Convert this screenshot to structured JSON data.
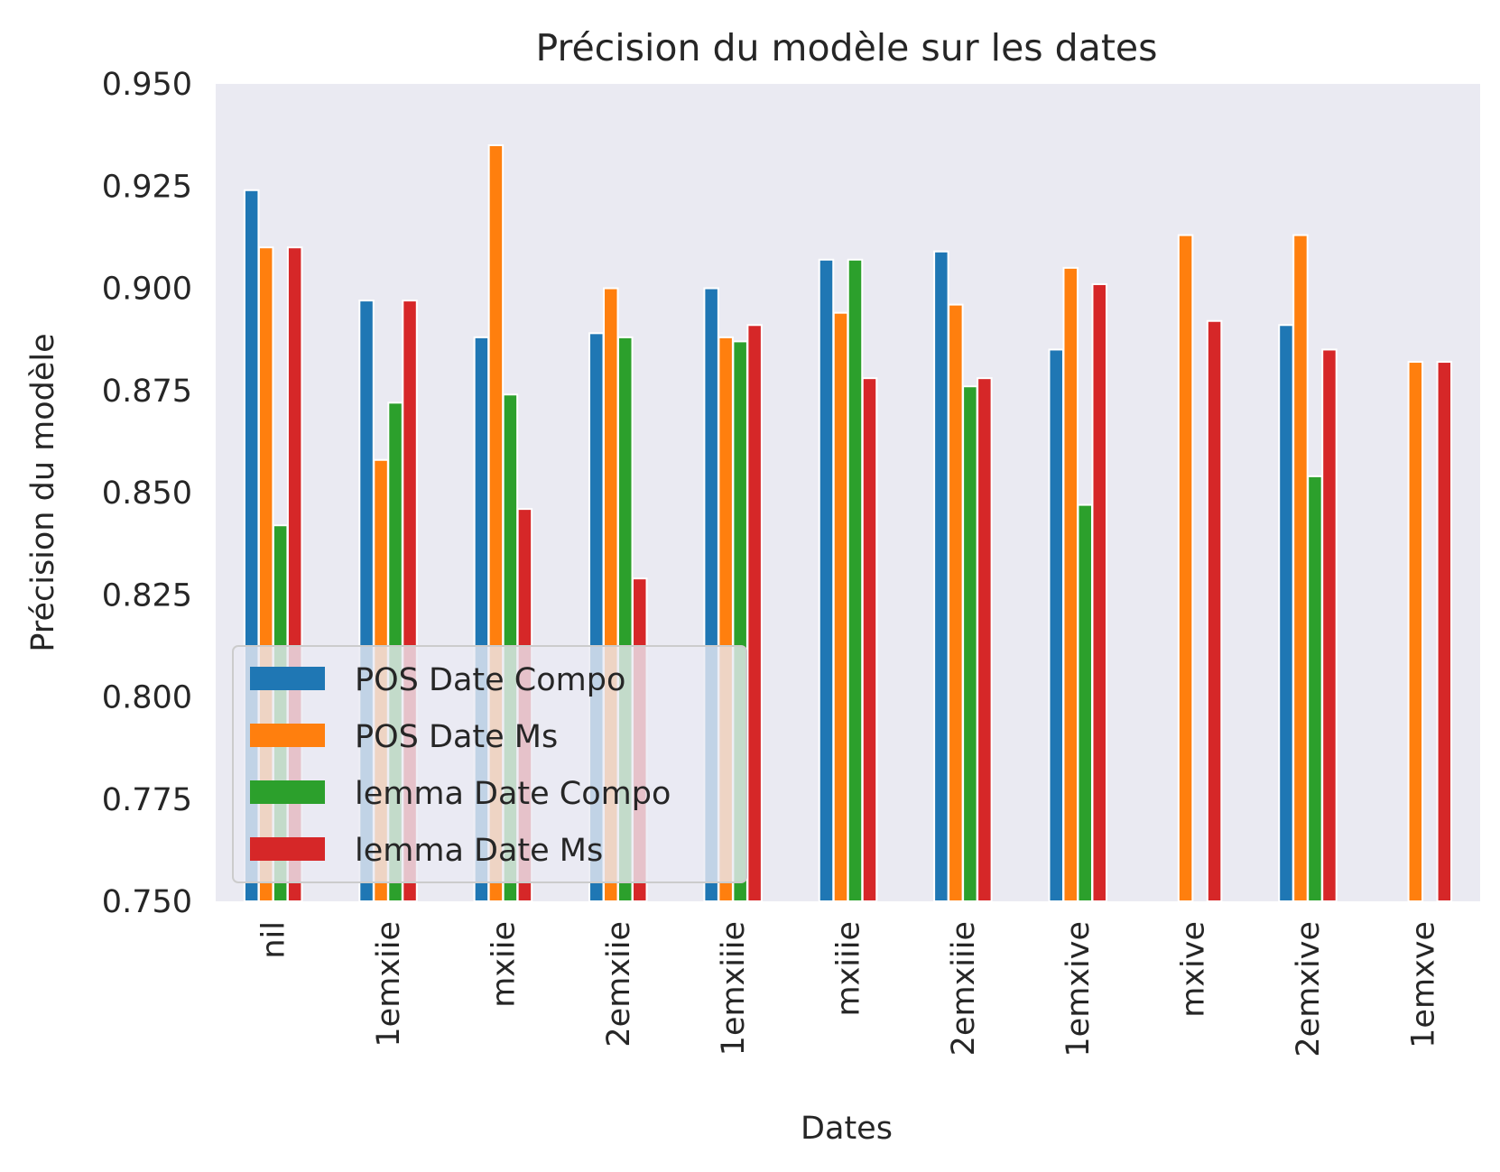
{
  "chart_data": {
    "type": "bar",
    "title": "Précision du modèle sur les dates",
    "xlabel": "Dates",
    "ylabel": "Précision du modèle",
    "ylim": [
      0.75,
      0.95
    ],
    "yticks": [
      "0.750",
      "0.775",
      "0.800",
      "0.825",
      "0.850",
      "0.875",
      "0.900",
      "0.925",
      "0.950"
    ],
    "grid": false,
    "legend_position": "lower-left",
    "categories": [
      "nil",
      "1emxiie",
      "mxiie",
      "2emxiie",
      "1emxiiie",
      "mxiiie",
      "2emxiiie",
      "1emxive",
      "mxive",
      "2emxive",
      "1emxve"
    ],
    "series": [
      {
        "name": "POS Date Compo",
        "color": "#1f77b4",
        "values": [
          0.924,
          0.897,
          0.888,
          0.889,
          0.9,
          0.907,
          0.909,
          0.885,
          null,
          0.891,
          null
        ]
      },
      {
        "name": "POS Date Ms",
        "color": "#ff7f0e",
        "values": [
          0.91,
          0.858,
          0.935,
          0.9,
          0.888,
          0.894,
          0.896,
          0.905,
          0.913,
          0.913,
          0.882
        ]
      },
      {
        "name": "lemma Date Compo",
        "color": "#2ca02c",
        "values": [
          0.842,
          0.872,
          0.874,
          0.888,
          0.887,
          0.907,
          0.876,
          0.847,
          null,
          0.854,
          null
        ]
      },
      {
        "name": "lemma Date Ms",
        "color": "#d62728",
        "values": [
          0.91,
          0.897,
          0.846,
          0.829,
          0.891,
          0.878,
          0.878,
          0.901,
          0.892,
          0.885,
          0.882
        ]
      }
    ],
    "colors": {
      "plot_background": "#eaeaf2",
      "legend_background": "#eaeaf2",
      "legend_border": "#cccccc",
      "text": "#262626"
    }
  }
}
